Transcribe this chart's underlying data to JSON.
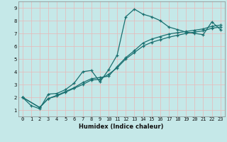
{
  "title": "",
  "xlabel": "Humidex (Indice chaleur)",
  "bg_color": "#c5e8e8",
  "line_color": "#1a7070",
  "grid_color": "#e8b8b8",
  "xlim": [
    -0.5,
    23.5
  ],
  "ylim": [
    0.5,
    9.5
  ],
  "xticks": [
    0,
    1,
    2,
    3,
    4,
    5,
    6,
    7,
    8,
    9,
    10,
    11,
    12,
    13,
    14,
    15,
    16,
    17,
    18,
    19,
    20,
    21,
    22,
    23
  ],
  "yticks": [
    1,
    2,
    3,
    4,
    5,
    6,
    7,
    8,
    9
  ],
  "series1_x": [
    0,
    1,
    2,
    3,
    4,
    5,
    6,
    7,
    8,
    9,
    10,
    11,
    12,
    13,
    14,
    15,
    16,
    17,
    18,
    19,
    20,
    21,
    22,
    23
  ],
  "series1_y": [
    2.0,
    1.35,
    1.1,
    2.25,
    2.3,
    2.6,
    3.1,
    4.0,
    4.1,
    3.2,
    4.15,
    5.3,
    8.3,
    8.9,
    8.5,
    8.3,
    8.0,
    7.5,
    7.3,
    7.1,
    7.0,
    6.9,
    7.9,
    7.3
  ],
  "series2_x": [
    0,
    2,
    3,
    4,
    5,
    6,
    7,
    8,
    9,
    10,
    11,
    12,
    13,
    14,
    15,
    16,
    17,
    18,
    19,
    20,
    21,
    22,
    23
  ],
  "series2_y": [
    2.0,
    1.2,
    1.9,
    2.1,
    2.4,
    2.7,
    3.0,
    3.35,
    3.4,
    3.8,
    4.3,
    5.0,
    5.5,
    6.0,
    6.3,
    6.5,
    6.7,
    6.85,
    7.0,
    7.1,
    7.2,
    7.4,
    7.5
  ],
  "series3_x": [
    0,
    2,
    3,
    4,
    5,
    6,
    7,
    8,
    9,
    10,
    11,
    12,
    13,
    14,
    15,
    16,
    17,
    18,
    19,
    20,
    21,
    22,
    23
  ],
  "series3_y": [
    2.0,
    1.2,
    1.9,
    2.15,
    2.45,
    2.75,
    3.15,
    3.45,
    3.55,
    3.65,
    4.4,
    5.1,
    5.65,
    6.25,
    6.55,
    6.75,
    6.95,
    7.05,
    7.15,
    7.25,
    7.35,
    7.55,
    7.65
  ]
}
